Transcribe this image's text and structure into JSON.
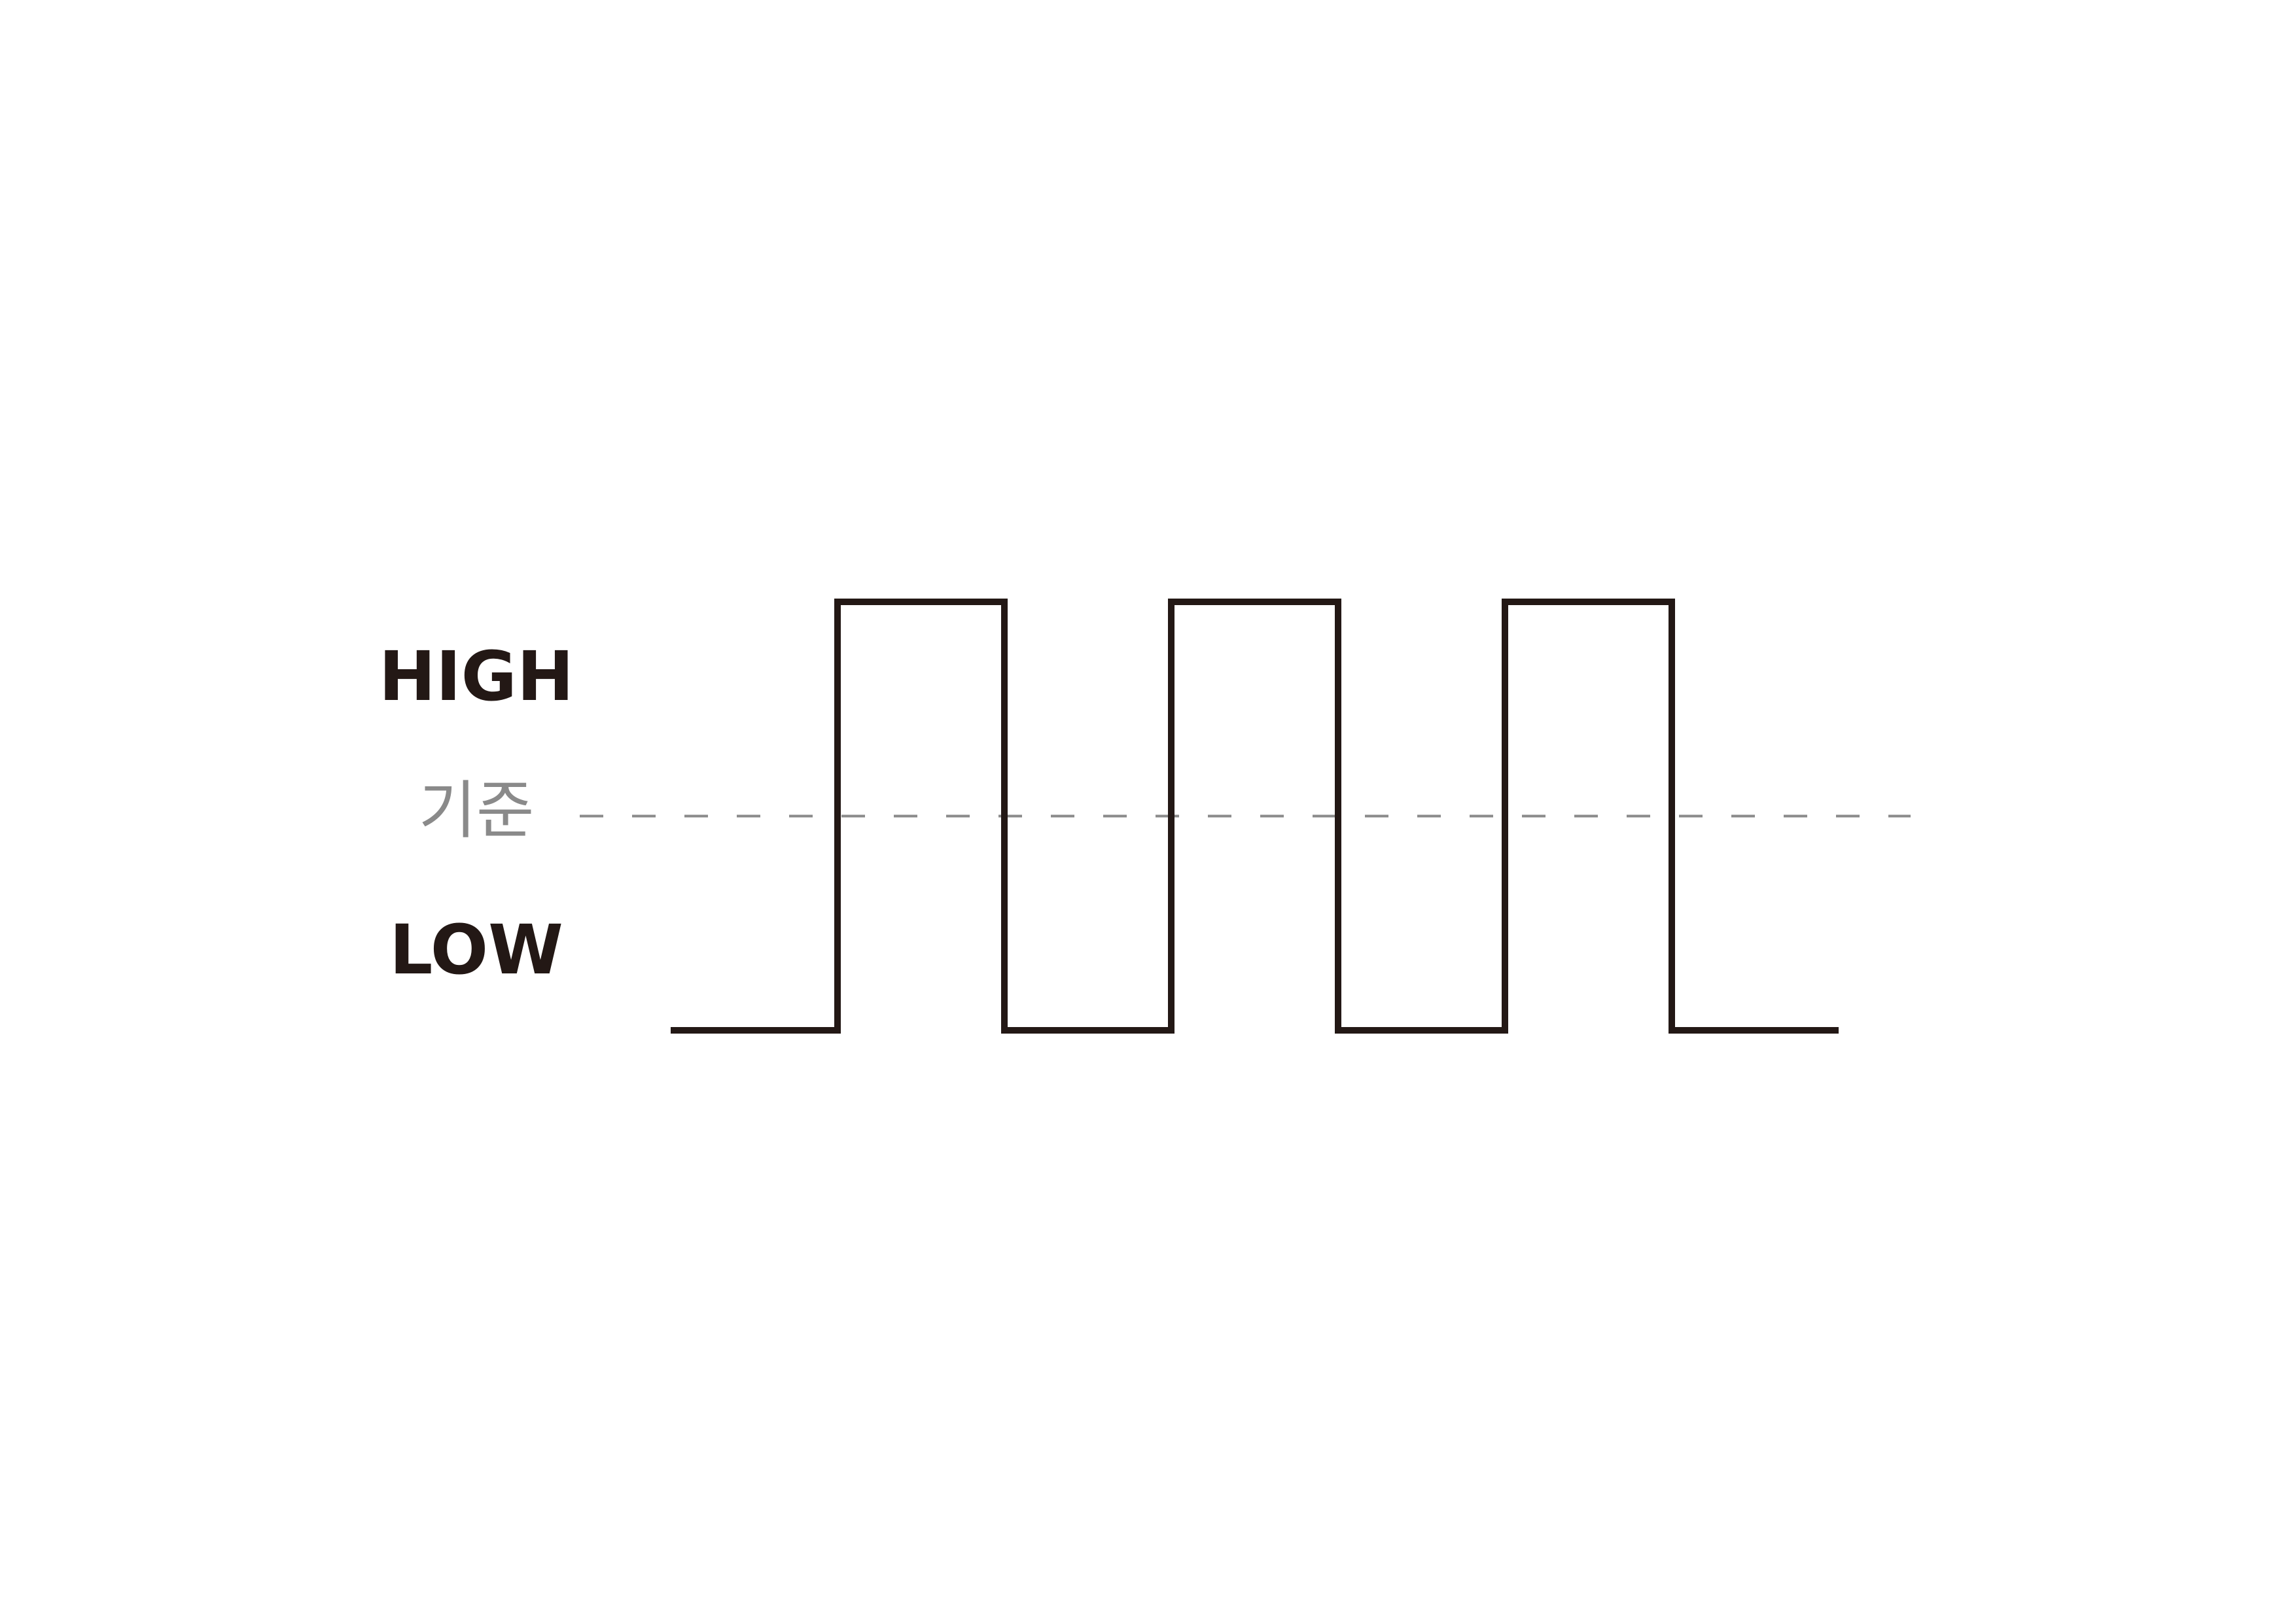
{
  "chart_data": {
    "type": "line",
    "y_tick_labels": {
      "high": "HIGH",
      "reference": "기준",
      "low": "LOW"
    },
    "levels": {
      "low": 0,
      "reference": 0.5,
      "high": 1
    },
    "signal": {
      "shape": "square-wave",
      "segments": [
        0,
        1,
        0,
        1,
        0,
        1,
        0
      ],
      "color": "#231815"
    },
    "reference_line": {
      "style": "dashed",
      "color": "#8a8a8a"
    },
    "grid": false,
    "legend": "none"
  }
}
